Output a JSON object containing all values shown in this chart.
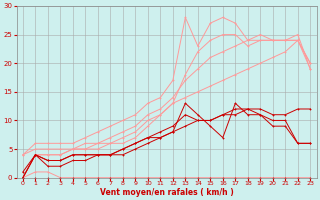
{
  "background_color": "#cef0ee",
  "grid_color": "#aaaaaa",
  "xlabel": "Vent moyen/en rafales ( km/h )",
  "xlabel_color": "#cc0000",
  "tick_color": "#cc0000",
  "xlim": [
    -0.5,
    23.5
  ],
  "ylim": [
    0,
    30
  ],
  "xticks": [
    0,
    1,
    2,
    3,
    4,
    5,
    6,
    7,
    8,
    9,
    10,
    11,
    12,
    13,
    14,
    15,
    16,
    17,
    18,
    19,
    20,
    21,
    22,
    23
  ],
  "yticks": [
    0,
    5,
    10,
    15,
    20,
    25,
    30
  ],
  "light_red": "#ff9999",
  "dark_red": "#cc0000",
  "series_light": [
    {
      "x": [
        0,
        1,
        2,
        3,
        4,
        5,
        6,
        7,
        8,
        9,
        10,
        11,
        12,
        13,
        14,
        15,
        16,
        17,
        18,
        19,
        20,
        21,
        22,
        23
      ],
      "y": [
        0,
        4,
        4,
        4,
        5,
        5,
        5,
        6,
        6,
        7,
        9,
        11,
        13,
        18,
        22,
        24,
        25,
        25,
        23,
        24,
        24,
        24,
        25,
        19
      ]
    },
    {
      "x": [
        0,
        1,
        2,
        3,
        4,
        5,
        6,
        7,
        8,
        9,
        10,
        11,
        12,
        13,
        14,
        15,
        16,
        17,
        18,
        19,
        20,
        21,
        22,
        23
      ],
      "y": [
        0,
        4,
        4,
        4,
        5,
        5,
        6,
        6,
        7,
        8,
        10,
        11,
        13,
        14,
        15,
        16,
        17,
        18,
        19,
        20,
        21,
        22,
        24,
        19
      ]
    },
    {
      "x": [
        0,
        1,
        2,
        3,
        4,
        5,
        6,
        7,
        8,
        9,
        10,
        11,
        12,
        13,
        14,
        15,
        16,
        17,
        18,
        19,
        20,
        21,
        22,
        23
      ],
      "y": [
        4,
        5,
        5,
        5,
        5,
        6,
        6,
        7,
        8,
        9,
        11,
        12,
        14,
        17,
        19,
        21,
        22,
        23,
        24,
        25,
        24,
        24,
        24,
        20
      ]
    },
    {
      "x": [
        0,
        1,
        2,
        3,
        4,
        5,
        6,
        7,
        8,
        9,
        10,
        11,
        12,
        13,
        14,
        15,
        16,
        17,
        18,
        19,
        20,
        21,
        22,
        23
      ],
      "y": [
        4,
        6,
        6,
        6,
        6,
        7,
        8,
        9,
        10,
        11,
        13,
        14,
        17,
        28,
        23,
        27,
        28,
        27,
        24,
        24,
        24,
        24,
        24,
        20
      ]
    },
    {
      "x": [
        0,
        1,
        2,
        3,
        4,
        5,
        6,
        7,
        8,
        9,
        10,
        11,
        12,
        13,
        14,
        15,
        16,
        17,
        18,
        19,
        20,
        21,
        22,
        23
      ],
      "y": [
        0,
        1,
        1,
        0,
        0,
        0,
        0,
        0,
        0,
        0,
        0,
        0,
        0,
        0,
        0,
        0,
        0,
        0,
        0,
        0,
        0,
        0,
        0,
        0
      ]
    }
  ],
  "series_dark": [
    {
      "x": [
        0,
        1,
        2,
        3,
        4,
        5,
        6,
        7,
        8,
        9,
        10,
        11,
        12,
        13,
        14,
        15,
        16,
        17,
        18,
        19,
        20,
        21,
        22,
        23
      ],
      "y": [
        0,
        4,
        2,
        2,
        3,
        3,
        4,
        4,
        4,
        5,
        6,
        7,
        8,
        13,
        11,
        9,
        7,
        13,
        11,
        11,
        9,
        9,
        6,
        6
      ]
    },
    {
      "x": [
        0,
        1,
        2,
        3,
        4,
        5,
        6,
        7,
        8,
        9,
        10,
        11,
        12,
        13,
        14,
        15,
        16,
        17,
        18,
        19,
        20,
        21,
        22,
        23
      ],
      "y": [
        1,
        4,
        3,
        3,
        4,
        4,
        4,
        4,
        5,
        6,
        7,
        8,
        9,
        11,
        10,
        10,
        11,
        11,
        12,
        11,
        10,
        10,
        6,
        6
      ]
    },
    {
      "x": [
        0,
        1,
        2,
        3,
        4,
        5,
        6,
        7,
        8,
        9,
        10,
        11,
        12,
        13,
        14,
        15,
        16,
        17,
        18,
        19,
        20,
        21,
        22,
        23
      ],
      "y": [
        0,
        4,
        3,
        3,
        4,
        4,
        4,
        4,
        5,
        6,
        7,
        7,
        8,
        9,
        10,
        10,
        11,
        12,
        12,
        12,
        11,
        11,
        12,
        12
      ]
    },
    {
      "x": [
        0,
        1,
        2,
        3,
        4,
        5,
        6,
        7,
        8,
        9,
        10,
        11,
        12,
        13,
        14,
        15,
        16,
        17,
        18,
        19,
        20,
        21,
        22,
        23
      ],
      "y": [
        0,
        0,
        0,
        0,
        0,
        0,
        0,
        0,
        0,
        0,
        0,
        0,
        0,
        0,
        0,
        0,
        0,
        0,
        0,
        0,
        0,
        0,
        0,
        0
      ]
    }
  ],
  "arrow_xs_bottom": [
    1,
    2,
    3,
    10,
    11,
    12,
    13,
    14,
    15,
    16,
    17,
    18,
    19,
    20,
    21,
    22,
    23
  ]
}
